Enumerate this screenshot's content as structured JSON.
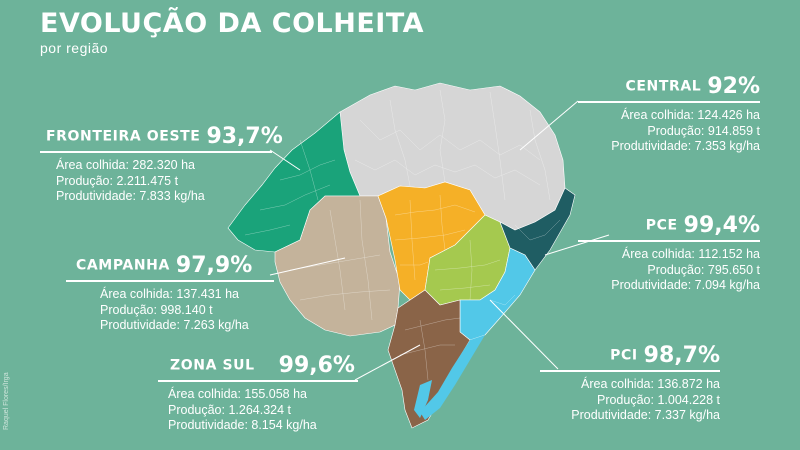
{
  "header": {
    "title": "EVOLUÇÃO DA COLHEITA",
    "subtitle": "por região",
    "credit": "Raquel Flores/Irga"
  },
  "colors": {
    "background": "#6db39a",
    "fronteira_oeste": "#1aa37a",
    "campanha": "#c4b39b",
    "central_outer": "#d6d6d6",
    "central_inner": "#f5b027",
    "pce": "#1f5d63",
    "pci": "#52c8e8",
    "pci_green": "#a5c94f",
    "zona_sul": "#8a6448"
  },
  "regions": {
    "central": {
      "name": "CENTRAL",
      "percent": "92%",
      "area": "Área colhida: 124.426 ha",
      "production": "Produção: 914.859 t",
      "productivity": "Produtividade: 7.353 kg/ha"
    },
    "fronteira_oeste": {
      "name": "FRONTEIRA OESTE",
      "percent": "93,7%",
      "area": "Área colhida: 282.320 ha",
      "production": "Produção: 2.211.475 t",
      "productivity": "Produtividade: 7.833 kg/ha"
    },
    "pce": {
      "name": "PCE",
      "percent": "99,4%",
      "area": "Área colhida: 112.152 ha",
      "production": "Produção: 795.650 t",
      "productivity": "Produtividade: 7.094 kg/ha"
    },
    "campanha": {
      "name": "CAMPANHA",
      "percent": "97,9%",
      "area": "Área colhida: 137.431 ha",
      "production": "Produção: 998.140 t",
      "productivity": "Produtividade: 7.263 kg/ha"
    },
    "zona_sul": {
      "name": "ZONA SUL",
      "percent": "99,6%",
      "area": "Área colhida: 155.058 ha",
      "production": "Produção: 1.264.324 t",
      "productivity": "Produtividade: 8.154 kg/ha"
    },
    "pci": {
      "name": "PCI",
      "percent": "98,7%",
      "area": "Área colhida: 136.872 ha",
      "production": "Produção: 1.004.228 t",
      "productivity": "Produtividade: 7.337 kg/ha"
    }
  }
}
